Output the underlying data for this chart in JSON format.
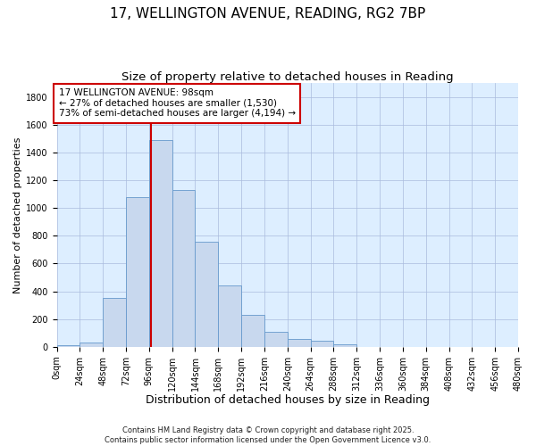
{
  "title": "17, WELLINGTON AVENUE, READING, RG2 7BP",
  "subtitle": "Size of property relative to detached houses in Reading",
  "xlabel": "Distribution of detached houses by size in Reading",
  "ylabel": "Number of detached properties",
  "bar_edges": [
    0,
    24,
    48,
    72,
    96,
    120,
    144,
    168,
    192,
    216,
    240,
    264,
    288,
    312,
    336,
    360,
    384,
    408,
    432,
    456,
    480
  ],
  "bar_heights": [
    15,
    30,
    355,
    1075,
    1490,
    1130,
    760,
    440,
    230,
    110,
    55,
    45,
    20,
    0,
    0,
    0,
    0,
    0,
    0,
    0
  ],
  "bar_color": "#c8d8ee",
  "bar_edgecolor": "#6699cc",
  "property_line_x": 98,
  "property_line_color": "#cc0000",
  "annotation_title": "17 WELLINGTON AVENUE: 98sqm",
  "annotation_line1": "← 27% of detached houses are smaller (1,530)",
  "annotation_line2": "73% of semi-detached houses are larger (4,194) →",
  "annotation_box_edgecolor": "#cc0000",
  "ylim": [
    0,
    1900
  ],
  "yticks": [
    0,
    200,
    400,
    600,
    800,
    1000,
    1200,
    1400,
    1600,
    1800
  ],
  "xtick_labels": [
    "0sqm",
    "24sqm",
    "48sqm",
    "72sqm",
    "96sqm",
    "120sqm",
    "144sqm",
    "168sqm",
    "192sqm",
    "216sqm",
    "240sqm",
    "264sqm",
    "288sqm",
    "312sqm",
    "336sqm",
    "360sqm",
    "384sqm",
    "408sqm",
    "432sqm",
    "456sqm",
    "480sqm"
  ],
  "footnote1": "Contains HM Land Registry data © Crown copyright and database right 2025.",
  "footnote2": "Contains public sector information licensed under the Open Government Licence v3.0.",
  "bg_color": "#ffffff",
  "plot_bg_color": "#ddeeff",
  "grid_color": "#aabbdd",
  "title_fontsize": 11,
  "subtitle_fontsize": 9.5,
  "xlabel_fontsize": 9,
  "ylabel_fontsize": 8,
  "tick_fontsize": 7,
  "annotation_fontsize": 7.5,
  "footnote_fontsize": 6
}
